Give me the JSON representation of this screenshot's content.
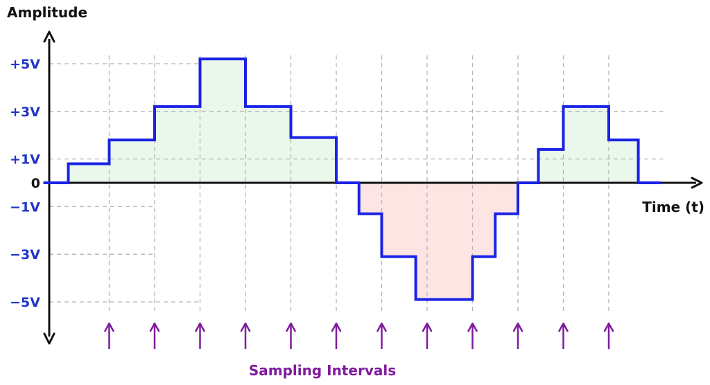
{
  "chart_data": {
    "type": "line",
    "y_axis_title": "Amplitude",
    "x_axis_title": "Time (t)",
    "y_tick_labels": [
      {
        "label": "+5V",
        "value": 5
      },
      {
        "label": "+3V",
        "value": 3
      },
      {
        "label": "+1V",
        "value": 1
      },
      {
        "label": "0",
        "value": 0
      },
      {
        "label": "−1V",
        "value": -1
      },
      {
        "label": "−3V",
        "value": -3
      },
      {
        "label": "−5V",
        "value": -5
      }
    ],
    "sampling_times": [
      1,
      2,
      3,
      4,
      5,
      6,
      7,
      8,
      9,
      10,
      11,
      12
    ],
    "steps": [
      {
        "t_start": -0.45,
        "t_end": 0.1,
        "value": 0
      },
      {
        "t_start": 0.1,
        "t_end": 1,
        "value": 0.8
      },
      {
        "t_start": 1,
        "t_end": 2,
        "value": 1.8
      },
      {
        "t_start": 2,
        "t_end": 3,
        "value": 3.2
      },
      {
        "t_start": 3,
        "t_end": 4,
        "value": 5.2
      },
      {
        "t_start": 4,
        "t_end": 5,
        "value": 3.2
      },
      {
        "t_start": 5,
        "t_end": 6,
        "value": 1.9
      },
      {
        "t_start": 6,
        "t_end": 6.5,
        "value": 0
      },
      {
        "t_start": 6.5,
        "t_end": 7,
        "value": -1.3
      },
      {
        "t_start": 7,
        "t_end": 7.75,
        "value": -3.1
      },
      {
        "t_start": 7.75,
        "t_end": 9,
        "value": -4.9
      },
      {
        "t_start": 9,
        "t_end": 9.5,
        "value": -3.1
      },
      {
        "t_start": 9.5,
        "t_end": 10,
        "value": -1.3
      },
      {
        "t_start": 10,
        "t_end": 10.45,
        "value": 0
      },
      {
        "t_start": 10.45,
        "t_end": 11,
        "value": 1.4
      },
      {
        "t_start": 11,
        "t_end": 12,
        "value": 3.2
      },
      {
        "t_start": 12,
        "t_end": 12.65,
        "value": 1.8
      },
      {
        "t_start": 12.65,
        "t_end": 13.15,
        "value": 0
      }
    ],
    "grid": "dashed",
    "caption": "Sampling Intervals",
    "colors": {
      "signal": "#1a22e6",
      "positive_fill": "#e9f8ea",
      "negative_fill": "#fde5e4",
      "axis": "#111111",
      "grid": "#b4b4b4",
      "tick_label": "#1f35c8",
      "arrow": "#7f1b9e",
      "caption": "#7f1b9e"
    }
  }
}
